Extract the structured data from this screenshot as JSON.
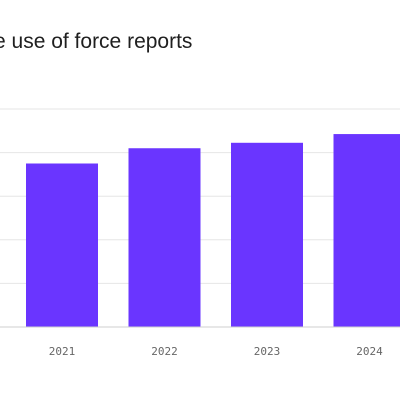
{
  "chart_data": {
    "type": "bar",
    "title": "e use of force reports",
    "categories": [
      "2021",
      "2022",
      "2023",
      "2024"
    ],
    "values": [
      75,
      82,
      84.5,
      88.5
    ],
    "ylim": [
      0,
      100
    ],
    "grid": true,
    "bar_color": "#6a35ff"
  }
}
